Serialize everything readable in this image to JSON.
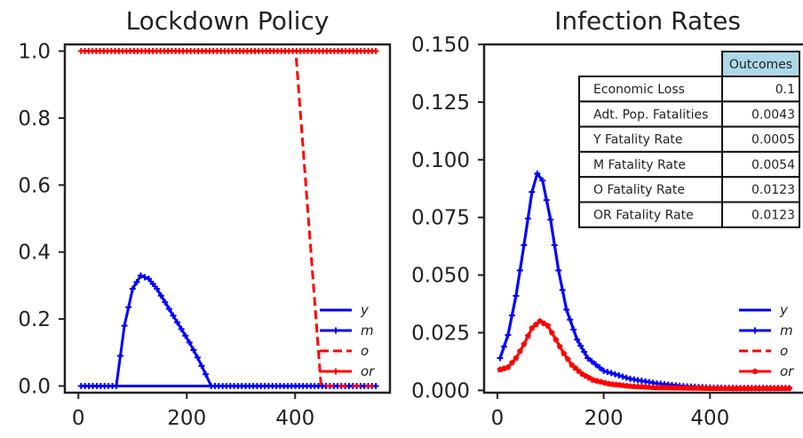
{
  "chart_data": [
    {
      "type": "line",
      "title": "Lockdown Policy",
      "xlabel": "",
      "ylabel": "",
      "xlim": [
        -25,
        575
      ],
      "ylim": [
        -0.02,
        1.02
      ],
      "xticks": [
        0,
        200,
        400
      ],
      "xtick_labels": [
        "0",
        "200",
        "400"
      ],
      "yticks": [
        0.0,
        0.2,
        0.4,
        0.6,
        0.8,
        1.0
      ],
      "ytick_labels": [
        "0.0",
        "0.2",
        "0.4",
        "0.6",
        "0.8",
        "1.0"
      ],
      "grid": false,
      "legend_position": "lower-right",
      "series": [
        {
          "name": "y",
          "color": "#0000ff",
          "style": "solid",
          "marker": "none",
          "points": [
            [
              5,
              0.0
            ],
            [
              549,
              0.0
            ]
          ]
        },
        {
          "name": "m",
          "color": "#0000ff",
          "style": "solid",
          "marker": "plus",
          "points": [
            [
              5,
              0.0
            ],
            [
              70,
              0.0
            ],
            [
              85,
              0.18
            ],
            [
              100,
              0.29
            ],
            [
              115,
              0.33
            ],
            [
              130,
              0.32
            ],
            [
              145,
              0.29
            ],
            [
              160,
              0.25
            ],
            [
              175,
              0.21
            ],
            [
              190,
              0.17
            ],
            [
              205,
              0.13
            ],
            [
              220,
              0.085
            ],
            [
              235,
              0.035
            ],
            [
              245,
              0.0
            ],
            [
              549,
              0.0
            ]
          ]
        },
        {
          "name": "o",
          "color": "#ff0000",
          "style": "dashed",
          "marker": "none",
          "points": [
            [
              402,
              0.98
            ],
            [
              448,
              0.0
            ],
            [
              549,
              0.0
            ]
          ]
        },
        {
          "name": "or",
          "color": "#ff0000",
          "style": "solid",
          "marker": "plus",
          "points": [
            [
              5,
              1.0
            ],
            [
              549,
              1.0
            ]
          ]
        }
      ]
    },
    {
      "type": "line",
      "title": "Infection Rates",
      "xlabel": "",
      "ylabel": "",
      "xlim": [
        -25,
        575
      ],
      "ylim": [
        -0.001,
        0.15
      ],
      "xticks": [
        0,
        200,
        400
      ],
      "xtick_labels": [
        "0",
        "200",
        "400"
      ],
      "yticks": [
        0.0,
        0.025,
        0.05,
        0.075,
        0.1,
        0.125,
        0.15
      ],
      "ytick_labels": [
        "0.000",
        "0.025",
        "0.050",
        "0.075",
        "0.100",
        "0.125",
        "0.150"
      ],
      "grid": false,
      "legend_position": "lower-right",
      "series": [
        {
          "name": "y",
          "color": "#0000ff",
          "style": "solid",
          "marker": "none",
          "points": [
            [
              5,
              0.014
            ],
            [
              20,
              0.024
            ],
            [
              35,
              0.041
            ],
            [
              50,
              0.063
            ],
            [
              65,
              0.086
            ],
            [
              75,
              0.094
            ],
            [
              85,
              0.091
            ],
            [
              100,
              0.074
            ],
            [
              115,
              0.052
            ],
            [
              130,
              0.035
            ],
            [
              150,
              0.022
            ],
            [
              170,
              0.014
            ],
            [
              200,
              0.0085
            ],
            [
              250,
              0.005
            ],
            [
              300,
              0.003
            ],
            [
              350,
              0.0018
            ],
            [
              400,
              0.0012
            ],
            [
              450,
              0.001
            ],
            [
              500,
              0.001
            ],
            [
              549,
              0.001
            ]
          ]
        },
        {
          "name": "m",
          "color": "#0000ff",
          "style": "solid",
          "marker": "plus",
          "points": [
            [
              5,
              0.014
            ],
            [
              20,
              0.024
            ],
            [
              35,
              0.041
            ],
            [
              50,
              0.063
            ],
            [
              65,
              0.086
            ],
            [
              75,
              0.094
            ],
            [
              85,
              0.091
            ],
            [
              100,
              0.074
            ],
            [
              115,
              0.052
            ],
            [
              130,
              0.035
            ],
            [
              150,
              0.022
            ],
            [
              170,
              0.014
            ],
            [
              200,
              0.0085
            ],
            [
              250,
              0.005
            ],
            [
              300,
              0.003
            ],
            [
              350,
              0.0018
            ],
            [
              400,
              0.0012
            ],
            [
              450,
              0.001
            ],
            [
              500,
              0.001
            ],
            [
              549,
              0.001
            ]
          ]
        },
        {
          "name": "o",
          "color": "#ff0000",
          "style": "dashed",
          "marker": "none",
          "points": [
            [
              5,
              0.009
            ],
            [
              20,
              0.01
            ],
            [
              35,
              0.014
            ],
            [
              50,
              0.02
            ],
            [
              65,
              0.027
            ],
            [
              80,
              0.03
            ],
            [
              95,
              0.028
            ],
            [
              110,
              0.022
            ],
            [
              125,
              0.016
            ],
            [
              140,
              0.011
            ],
            [
              160,
              0.007
            ],
            [
              180,
              0.0045
            ],
            [
              210,
              0.0028
            ],
            [
              250,
              0.0018
            ],
            [
              300,
              0.0012
            ],
            [
              400,
              0.0009
            ],
            [
              549,
              0.0009
            ]
          ]
        },
        {
          "name": "or",
          "color": "#ff0000",
          "style": "solid",
          "marker": "pentagon",
          "points": [
            [
              5,
              0.009
            ],
            [
              20,
              0.01
            ],
            [
              35,
              0.014
            ],
            [
              50,
              0.02
            ],
            [
              65,
              0.027
            ],
            [
              80,
              0.03
            ],
            [
              95,
              0.028
            ],
            [
              110,
              0.022
            ],
            [
              125,
              0.016
            ],
            [
              140,
              0.011
            ],
            [
              160,
              0.007
            ],
            [
              180,
              0.0045
            ],
            [
              210,
              0.0028
            ],
            [
              250,
              0.0018
            ],
            [
              300,
              0.0012
            ],
            [
              400,
              0.0009
            ],
            [
              549,
              0.0009
            ]
          ]
        }
      ],
      "table": {
        "header": "Outcomes",
        "header_color": "#add8e6",
        "rows": [
          {
            "label": "Economic Loss",
            "value": "0.1"
          },
          {
            "label": "Adt. Pop. Fatalities",
            "value": "0.0043"
          },
          {
            "label": "Y Fatality Rate",
            "value": "0.0005"
          },
          {
            "label": "M Fatality Rate",
            "value": "0.0054"
          },
          {
            "label": "O Fatality Rate",
            "value": "0.0123"
          },
          {
            "label": "OR Fatality Rate",
            "value": "0.0123"
          }
        ]
      }
    }
  ]
}
